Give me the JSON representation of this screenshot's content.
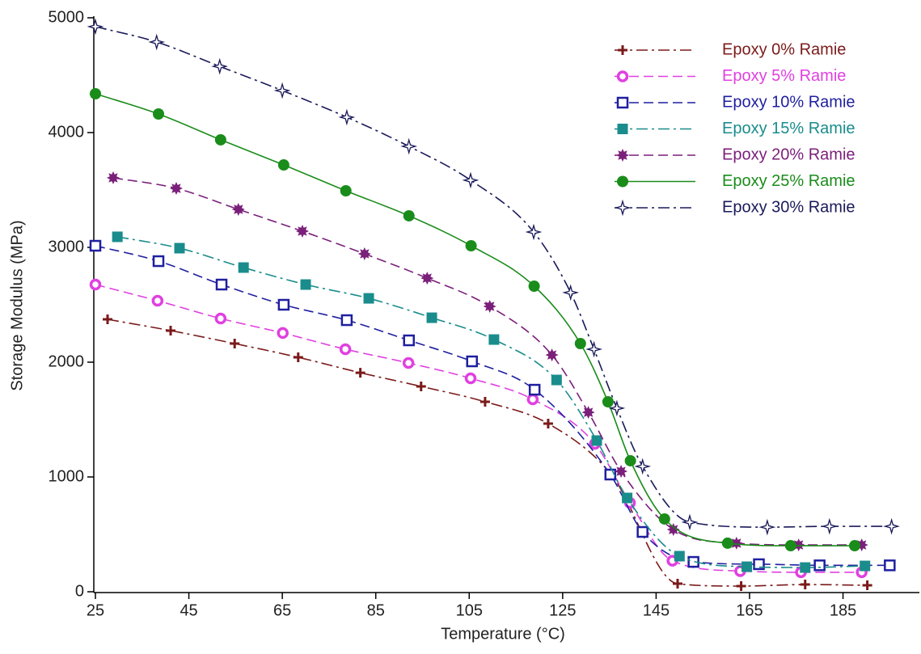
{
  "chart_data": {
    "type": "line",
    "x_label": "Temperature (°C)",
    "y_label": "Storage Modulus (MPa)",
    "xlim": [
      25,
      201
    ],
    "ylim": [
      0,
      5000
    ],
    "xticks": [
      25,
      45,
      65,
      85,
      105,
      125,
      145,
      165,
      185
    ],
    "yticks": [
      0,
      1000,
      2000,
      3000,
      4000,
      5000
    ],
    "grid": false,
    "legend": "upper right",
    "series": [
      {
        "name": "Epoxy 0% Ramie",
        "color": "#7b1a1a",
        "marker": "plus",
        "dash": "dashdot",
        "x": [
          27.6,
          41.1,
          54.8,
          68.4,
          81.7,
          94.7,
          108.4,
          121.9,
          135.4,
          149.6,
          163.2,
          176.9,
          190.2
        ],
        "values": [
          2373,
          2275,
          2162,
          2042,
          1908,
          1789,
          1655,
          1465,
          1021,
          70,
          49,
          63,
          56
        ]
      },
      {
        "name": "Epoxy 5% Ramie",
        "color": "#e040e0",
        "marker": "circle-open",
        "dash": "dash",
        "x": [
          25,
          38.3,
          51.8,
          65.1,
          78.5,
          92,
          105.3,
          118.6,
          131.9,
          139.4,
          148.5,
          163,
          176,
          189
        ],
        "values": [
          2676,
          2535,
          2380,
          2254,
          2113,
          1993,
          1859,
          1676,
          1289,
          775,
          270,
          180,
          170,
          170
        ]
      },
      {
        "name": "Epoxy 10% Ramie",
        "color": "#1f1fa0",
        "marker": "square-open",
        "dash": "dash",
        "x": [
          25,
          38.5,
          52,
          65.3,
          78.8,
          92.1,
          105.6,
          119,
          135.2,
          142.1,
          153,
          167,
          180,
          195
        ],
        "values": [
          3014,
          2880,
          2676,
          2500,
          2366,
          2190,
          2007,
          1760,
          1021,
          521,
          260,
          240,
          230,
          230
        ]
      },
      {
        "name": "Epoxy 15% Ramie",
        "color": "#1a8c8c",
        "marker": "square",
        "dash": "dashdot",
        "x": [
          29.7,
          43,
          56.7,
          70,
          83.5,
          97,
          110.3,
          123.7,
          132.3,
          138.8,
          150,
          164.4,
          176.9,
          189.7
        ],
        "values": [
          3092,
          2993,
          2824,
          2676,
          2556,
          2387,
          2197,
          1845,
          1317,
          817,
          310,
          218,
          211,
          225
        ]
      },
      {
        "name": "Epoxy 20% Ramie",
        "color": "#7a1f7a",
        "marker": "star",
        "dash": "dash",
        "x": [
          28.8,
          42.3,
          55.6,
          69.3,
          82.6,
          96,
          109.4,
          122.7,
          130.5,
          137.5,
          148.7,
          162.2,
          175.5,
          189
        ],
        "values": [
          3606,
          3514,
          3331,
          3141,
          2944,
          2732,
          2486,
          2063,
          1563,
          1049,
          542,
          423,
          408,
          408
        ]
      },
      {
        "name": "Epoxy 25% Ramie",
        "color": "#1a8c1a",
        "marker": "circle",
        "dash": "solid",
        "x": [
          25,
          38.5,
          51.8,
          65.3,
          78.6,
          92.1,
          105.4,
          118.9,
          128.8,
          134.7,
          139.5,
          146.8,
          160.3,
          173.8,
          187.5
        ],
        "values": [
          4338,
          4162,
          3937,
          3718,
          3493,
          3275,
          3014,
          2662,
          2162,
          1655,
          1141,
          634,
          423,
          401,
          401
        ]
      },
      {
        "name": "Epoxy 30% Ramie",
        "color": "#1a1a5a",
        "marker": "star-open",
        "dash": "dashdot",
        "x": [
          25,
          38.1,
          51.6,
          65,
          78.8,
          92.1,
          105.3,
          118.8,
          126.7,
          131.7,
          136.6,
          142.1,
          152.2,
          168.8,
          182.1,
          195.4
        ],
        "values": [
          4923,
          4789,
          4577,
          4366,
          4134,
          3880,
          3585,
          3134,
          2606,
          2113,
          1599,
          1092,
          606,
          563,
          570,
          570
        ]
      }
    ]
  }
}
